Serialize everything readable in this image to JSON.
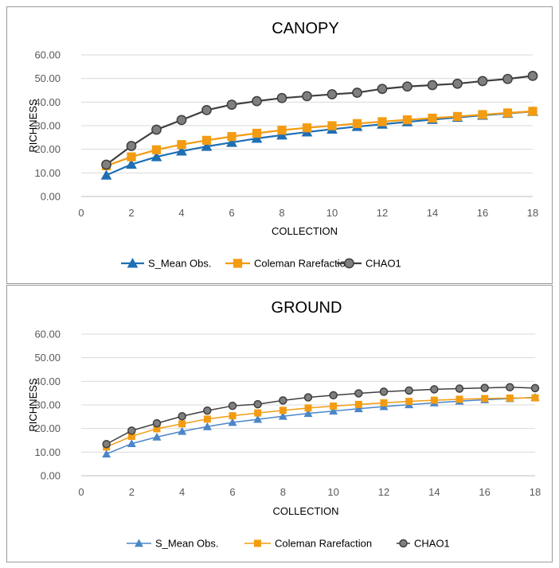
{
  "chart_data": [
    {
      "type": "line",
      "title": "CANOPY",
      "xlabel": "COLLECTION",
      "ylabel": "RICHNESS",
      "xlim": [
        0,
        18
      ],
      "ylim": [
        0,
        60
      ],
      "x_ticks": [
        "0",
        "2",
        "4",
        "6",
        "8",
        "10",
        "12",
        "14",
        "16",
        "18"
      ],
      "y_ticks": [
        "0.00",
        "10.00",
        "20.00",
        "30.00",
        "40.00",
        "50.00",
        "60.00"
      ],
      "grid": true,
      "legend_position": "bottom",
      "x": [
        1,
        2,
        3,
        4,
        5,
        6,
        7,
        8,
        9,
        10,
        11,
        12,
        13,
        14,
        15,
        16,
        17,
        18
      ],
      "series": [
        {
          "name": "S_Mean Obs.",
          "color": "#1f6fb5",
          "marker": "triangle",
          "values": [
            9.0,
            13.6,
            16.8,
            19.2,
            21.2,
            22.9,
            24.6,
            26.0,
            27.3,
            28.5,
            29.6,
            30.6,
            31.6,
            32.6,
            33.5,
            34.4,
            35.2,
            36.0
          ]
        },
        {
          "name": "Coleman Rarefaction",
          "color": "#f39c12",
          "marker": "square",
          "values": [
            13.0,
            16.8,
            19.8,
            22.0,
            23.8,
            25.4,
            26.8,
            28.1,
            29.1,
            30.0,
            30.9,
            31.7,
            32.5,
            33.2,
            33.9,
            34.7,
            35.4,
            36.1
          ]
        },
        {
          "name": "CHAO1",
          "color": "#3f3f3f",
          "marker": "circle",
          "values": [
            13.5,
            21.4,
            28.3,
            32.4,
            36.6,
            38.9,
            40.4,
            41.7,
            42.5,
            43.3,
            44.0,
            45.6,
            46.6,
            47.2,
            47.8,
            48.9,
            49.8,
            51.1
          ]
        }
      ]
    },
    {
      "type": "line",
      "title": "GROUND",
      "xlabel": "COLLECTION",
      "ylabel": "RICHNESS",
      "xlim": [
        0,
        18
      ],
      "ylim": [
        0,
        60
      ],
      "x_ticks": [
        "0",
        "2",
        "4",
        "6",
        "8",
        "10",
        "12",
        "14",
        "16",
        "18"
      ],
      "y_ticks": [
        "0.00",
        "10.00",
        "20.00",
        "30.00",
        "40.00",
        "50.00",
        "60.00"
      ],
      "grid": true,
      "legend_position": "bottom",
      "x": [
        1,
        2,
        3,
        4,
        5,
        6,
        7,
        8,
        9,
        10,
        11,
        12,
        13,
        14,
        15,
        16,
        17,
        18
      ],
      "series": [
        {
          "name": "S_Mean Obs.",
          "color": "#4a86c8",
          "marker": "triangle",
          "values": [
            9.2,
            13.6,
            16.4,
            18.8,
            20.8,
            22.6,
            23.9,
            25.2,
            26.4,
            27.4,
            28.4,
            29.3,
            30.1,
            30.9,
            31.6,
            32.2,
            32.7,
            33.2
          ]
        },
        {
          "name": "Coleman Rarefaction",
          "color": "#f39c12",
          "marker": "square",
          "values": [
            12.2,
            16.7,
            19.9,
            22.0,
            24.0,
            25.4,
            26.6,
            27.7,
            28.7,
            29.5,
            30.2,
            30.9,
            31.5,
            32.0,
            32.4,
            32.7,
            32.9,
            33.0
          ]
        },
        {
          "name": "CHAO1",
          "color": "#3f3f3f",
          "marker": "circle",
          "values": [
            13.4,
            19.1,
            22.2,
            25.2,
            27.6,
            29.6,
            30.3,
            31.9,
            33.2,
            34.1,
            34.9,
            35.6,
            36.1,
            36.6,
            36.9,
            37.2,
            37.5,
            37.1
          ]
        }
      ]
    }
  ]
}
